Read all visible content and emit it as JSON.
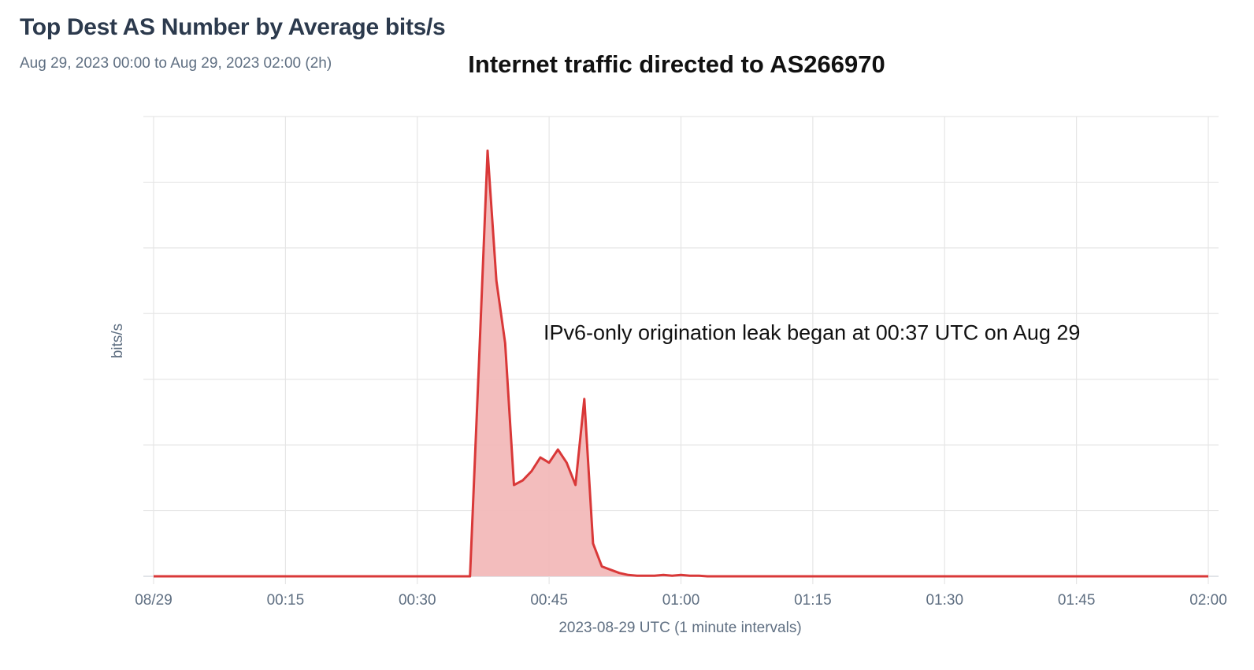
{
  "panel": {
    "title": "Top Dest AS Number by Average bits/s",
    "time_range": "Aug 29, 2023 00:00 to Aug 29, 2023 02:00 (2h)"
  },
  "chart_data": {
    "type": "area",
    "title": "Internet traffic directed to AS266970",
    "xlabel": "2023-08-29 UTC (1 minute intervals)",
    "ylabel": "bits/s",
    "x_unit": "minutes after 2023-08-29 00:00 UTC",
    "xlim": [
      0,
      120
    ],
    "ylim": [
      0,
      7
    ],
    "y_tick_labels_shown": false,
    "x_ticks": [
      {
        "value": 0,
        "label": "08/29"
      },
      {
        "value": 15,
        "label": "00:15"
      },
      {
        "value": 30,
        "label": "00:30"
      },
      {
        "value": 45,
        "label": "00:45"
      },
      {
        "value": 60,
        "label": "01:00"
      },
      {
        "value": 75,
        "label": "01:15"
      },
      {
        "value": 90,
        "label": "01:30"
      },
      {
        "value": 105,
        "label": "01:45"
      },
      {
        "value": 120,
        "label": "02:00"
      }
    ],
    "grid": true,
    "legend": "none",
    "series": [
      {
        "color": "#d93838",
        "fill": "#f2b9b9",
        "x": [
          0,
          36,
          37,
          38,
          39,
          40,
          41,
          42,
          43,
          44,
          45,
          46,
          47,
          48,
          49,
          50,
          51,
          52,
          53,
          54,
          55,
          56,
          57,
          58,
          59,
          60,
          61,
          62,
          63,
          64,
          65,
          120
        ],
        "values": [
          0,
          0,
          3.2,
          6.48,
          4.5,
          3.55,
          1.39,
          1.46,
          1.6,
          1.81,
          1.73,
          1.93,
          1.73,
          1.39,
          2.7,
          0.5,
          0.15,
          0.1,
          0.05,
          0.02,
          0.01,
          0.01,
          0.01,
          0.02,
          0.01,
          0.02,
          0.01,
          0.01,
          0,
          0,
          0,
          0
        ]
      }
    ],
    "annotations": [
      {
        "text": "IPv6-only origination leak began at 00:37 UTC on Aug 29",
        "x": 44,
        "y": 3.6
      }
    ]
  }
}
